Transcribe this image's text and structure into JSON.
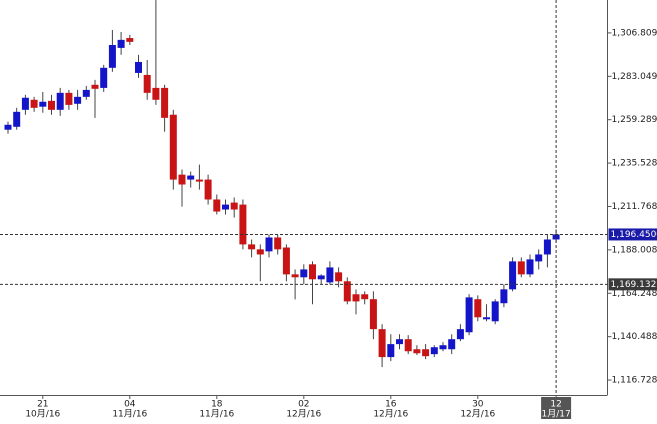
{
  "chart_data": {
    "type": "candlestick",
    "categories": [
      null,
      null,
      null,
      null,
      "21",
      null,
      null,
      null,
      null,
      null,
      null,
      null,
      null,
      null,
      "04",
      null,
      null,
      null,
      null,
      null,
      null,
      null,
      null,
      null,
      "18",
      null,
      null,
      null,
      null,
      null,
      null,
      null,
      null,
      null,
      "02",
      null,
      null,
      null,
      null,
      null,
      null,
      null,
      null,
      null,
      "16",
      null,
      null,
      null,
      null,
      null,
      null,
      null,
      null,
      null,
      "30",
      null,
      null,
      null,
      null,
      null,
      null,
      null,
      null,
      "12"
    ],
    "category_sublabels": [
      null,
      null,
      null,
      null,
      "10月/16",
      null,
      null,
      null,
      null,
      null,
      null,
      null,
      null,
      null,
      "11月/16",
      null,
      null,
      null,
      null,
      null,
      null,
      null,
      null,
      null,
      "11月/16",
      null,
      null,
      null,
      null,
      null,
      null,
      null,
      null,
      null,
      "12月/16",
      null,
      null,
      null,
      null,
      null,
      null,
      null,
      null,
      null,
      "12月/16",
      null,
      null,
      null,
      null,
      null,
      null,
      null,
      null,
      null,
      "12月/16",
      null,
      null,
      null,
      null,
      null,
      null,
      null,
      null,
      "1月/17"
    ],
    "open": [
      1253.8,
      1255.4,
      1264.7,
      1270.2,
      1266.4,
      1269.6,
      1264.7,
      1274.0,
      1268.0,
      1271.8,
      1278.4,
      1276.7,
      1287.7,
      1298.6,
      1304.0,
      1284.9,
      1283.8,
      1276.7,
      1276.7,
      1262.0,
      1229.2,
      1226.5,
      1226.5,
      1226.5,
      1215.6,
      1210.1,
      1213.9,
      1212.8,
      1191.0,
      1188.3,
      1187.2,
      1194.8,
      1189.3,
      1174.6,
      1173.0,
      1180.1,
      1171.9,
      1170.2,
      1175.7,
      1170.8,
      1163.7,
      1163.7,
      1161.0,
      1144.6,
      1129.3,
      1136.4,
      1139.1,
      1133.6,
      1133.6,
      1130.9,
      1133.6,
      1133.6,
      1139.1,
      1142.9,
      1161.0,
      1150.0,
      1148.9,
      1158.8,
      1166.4,
      1181.7,
      1174.6,
      1181.7,
      1185.5,
      1193.7
    ],
    "high": [
      1258.2,
      1265.8,
      1272.9,
      1271.8,
      1274.5,
      1272.9,
      1276.7,
      1275.6,
      1275.6,
      1277.8,
      1281.1,
      1289.3,
      1308.4,
      1307.3,
      1305.7,
      1294.8,
      1292.0,
      1324.8,
      1278.4,
      1264.7,
      1232.0,
      1230.9,
      1234.7,
      1229.2,
      1218.3,
      1215.6,
      1216.7,
      1215.6,
      1193.7,
      1191.0,
      1196.4,
      1196.4,
      1191.0,
      1177.3,
      1180.1,
      1181.7,
      1174.6,
      1181.7,
      1178.4,
      1173.0,
      1166.4,
      1165.3,
      1165.3,
      1147.3,
      1141.8,
      1141.8,
      1141.3,
      1135.8,
      1136.4,
      1135.8,
      1137.5,
      1141.8,
      1147.3,
      1163.7,
      1163.1,
      1158.2,
      1161.0,
      1169.1,
      1183.9,
      1183.9,
      1185.5,
      1188.3,
      1196.4,
      1199.2
    ],
    "low": [
      1251.6,
      1253.8,
      1262.0,
      1263.6,
      1263.1,
      1262.0,
      1261.4,
      1264.7,
      1264.7,
      1270.2,
      1260.3,
      1274.5,
      1285.5,
      1294.8,
      1300.2,
      1282.2,
      1270.2,
      1267.4,
      1252.7,
      1221.0,
      1211.7,
      1222.1,
      1221.0,
      1212.8,
      1207.4,
      1207.4,
      1205.7,
      1188.3,
      1183.9,
      1170.8,
      1183.9,
      1185.5,
      1170.8,
      1160.9,
      1169.1,
      1158.2,
      1169.1,
      1169.1,
      1167.5,
      1158.2,
      1152.7,
      1158.2,
      1139.1,
      1123.8,
      1127.1,
      1133.6,
      1130.9,
      1130.4,
      1128.2,
      1129.3,
      1132.5,
      1130.9,
      1138.0,
      1141.3,
      1148.9,
      1148.9,
      1147.3,
      1156.6,
      1165.3,
      1173.0,
      1173.0,
      1177.3,
      1178.4,
      1192.1
    ],
    "close": [
      1256.5,
      1263.6,
      1271.3,
      1265.8,
      1269.1,
      1264.7,
      1274.0,
      1267.4,
      1271.8,
      1275.6,
      1276.2,
      1287.7,
      1300.2,
      1303.0,
      1301.9,
      1290.9,
      1274.0,
      1270.2,
      1260.3,
      1226.5,
      1223.8,
      1228.7,
      1225.4,
      1215.6,
      1209.0,
      1212.8,
      1210.1,
      1191.0,
      1188.3,
      1185.5,
      1194.8,
      1188.3,
      1174.6,
      1173.0,
      1177.3,
      1171.9,
      1174.0,
      1178.4,
      1170.8,
      1159.8,
      1159.8,
      1161.0,
      1144.6,
      1129.3,
      1136.4,
      1139.1,
      1132.5,
      1131.4,
      1129.8,
      1134.7,
      1135.8,
      1139.1,
      1144.6,
      1162.0,
      1151.1,
      1151.1,
      1159.8,
      1166.4,
      1181.7,
      1174.6,
      1182.8,
      1185.5,
      1193.7,
      1196.45
    ],
    "up_color": "#1414c8",
    "down_color": "#c81414",
    "ylim": [
      1108.54,
      1324.83
    ],
    "yticks": [
      {
        "value": 1306.8094,
        "label": "1,306.80940"
      },
      {
        "value": 1283.04923,
        "label": "1,283.04923"
      },
      {
        "value": 1259.28906,
        "label": "1,259.28906"
      },
      {
        "value": 1235.52889,
        "label": "1,235.52889"
      },
      {
        "value": 1211.76871,
        "label": "1,211.76871"
      },
      {
        "value": 1188.00854,
        "label": "1,188.00854"
      },
      {
        "value": 1164.24837,
        "label": "1,164.24837"
      },
      {
        "value": 1140.4882,
        "label": "1,140.48820"
      },
      {
        "value": 1116.72803,
        "label": "1,116.72803"
      }
    ],
    "current_price": {
      "value": 1196.45,
      "label": "1,196.45000"
    },
    "reference_price": {
      "value": 1169.13238,
      "label": "1,169.13238"
    }
  }
}
